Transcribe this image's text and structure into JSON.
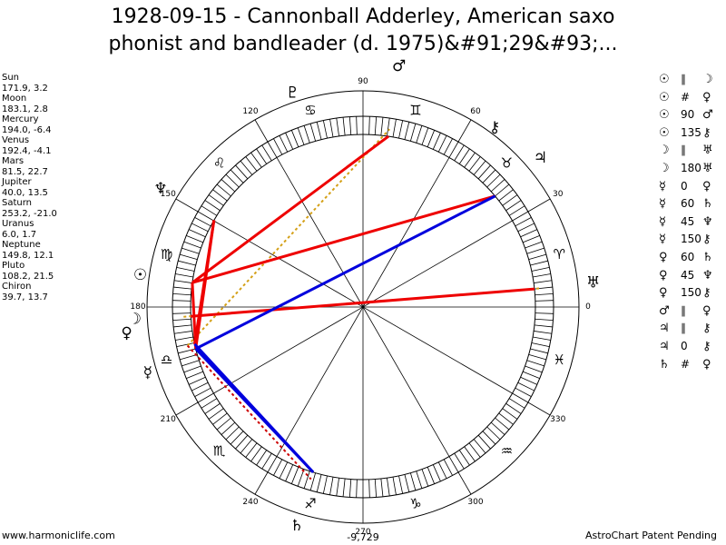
{
  "title": {
    "line1": "1928-09-15 - Cannonball Adderley, American saxo",
    "line2": "phonist and bandleader (d. 1975)&#91;29&#93;..."
  },
  "planets": [
    {
      "name": "Sun",
      "values": "171.9, 3.2"
    },
    {
      "name": "Moon",
      "values": "183.1, 2.8"
    },
    {
      "name": "Mercury",
      "values": "194.0, -6.4"
    },
    {
      "name": "Venus",
      "values": "192.4, -4.1"
    },
    {
      "name": "Mars",
      "values": "81.5, 22.7"
    },
    {
      "name": "Jupiter",
      "values": "40.0, 13.5"
    },
    {
      "name": "Saturn",
      "values": "253.2, -21.0"
    },
    {
      "name": "Uranus",
      "values": "6.0, 1.7"
    },
    {
      "name": "Neptune",
      "values": "149.8, 12.1"
    },
    {
      "name": "Pluto",
      "values": "108.2, 21.5"
    },
    {
      "name": "Chiron",
      "values": "39.7, 13.7"
    }
  ],
  "aspects": [
    {
      "p1": "☉",
      "asp": "∥",
      "p2": "☽"
    },
    {
      "p1": "☉",
      "asp": "#",
      "p2": "♀"
    },
    {
      "p1": "☉",
      "asp": "90",
      "p2": "♂"
    },
    {
      "p1": "☉",
      "asp": "135",
      "p2": "⚷"
    },
    {
      "p1": "☽",
      "asp": "∥",
      "p2": "♅"
    },
    {
      "p1": "☽",
      "asp": "180",
      "p2": "♅"
    },
    {
      "p1": "☿",
      "asp": "0",
      "p2": "♀"
    },
    {
      "p1": "☿",
      "asp": "60",
      "p2": "♄"
    },
    {
      "p1": "☿",
      "asp": "45",
      "p2": "♆"
    },
    {
      "p1": "☿",
      "asp": "150",
      "p2": "⚷"
    },
    {
      "p1": "♀",
      "asp": "60",
      "p2": "♄"
    },
    {
      "p1": "♀",
      "asp": "45",
      "p2": "♆"
    },
    {
      "p1": "♀",
      "asp": "150",
      "p2": "⚷"
    },
    {
      "p1": "♂",
      "asp": "∥",
      "p2": "♀"
    },
    {
      "p1": "♃",
      "asp": "∥",
      "p2": "⚷"
    },
    {
      "p1": "♃",
      "asp": "0",
      "p2": "⚷"
    },
    {
      "p1": "♄",
      "asp": "#",
      "p2": "♀"
    }
  ],
  "wheel": {
    "degree_labels": [
      "0",
      "30",
      "60",
      "90",
      "120",
      "150",
      "180",
      "210",
      "240",
      "270",
      "300",
      "330"
    ],
    "sign_glyphs": [
      "♈",
      "♉",
      "♊",
      "♋",
      "♌",
      "♍",
      "♎",
      "♏",
      "♐",
      "♑",
      "♒",
      "♓"
    ],
    "planet_glyphs": {
      "sun": "☉",
      "moon": "☽",
      "mercury": "☿",
      "venus": "♀",
      "mars": "♂",
      "jupiter": "♃",
      "saturn": "♄",
      "uranus": "♅",
      "neptune": "♆",
      "pluto": "♇",
      "chiron": "⚷"
    },
    "colors": {
      "red": "#ee0000",
      "blue": "#0000dd",
      "dotted": "#d4a017",
      "vertical_dotted": "#cc0000"
    }
  },
  "footer": {
    "left": "www.harmoniclife.com",
    "center": "-9,729",
    "right": "AstroChart Patent Pending"
  }
}
